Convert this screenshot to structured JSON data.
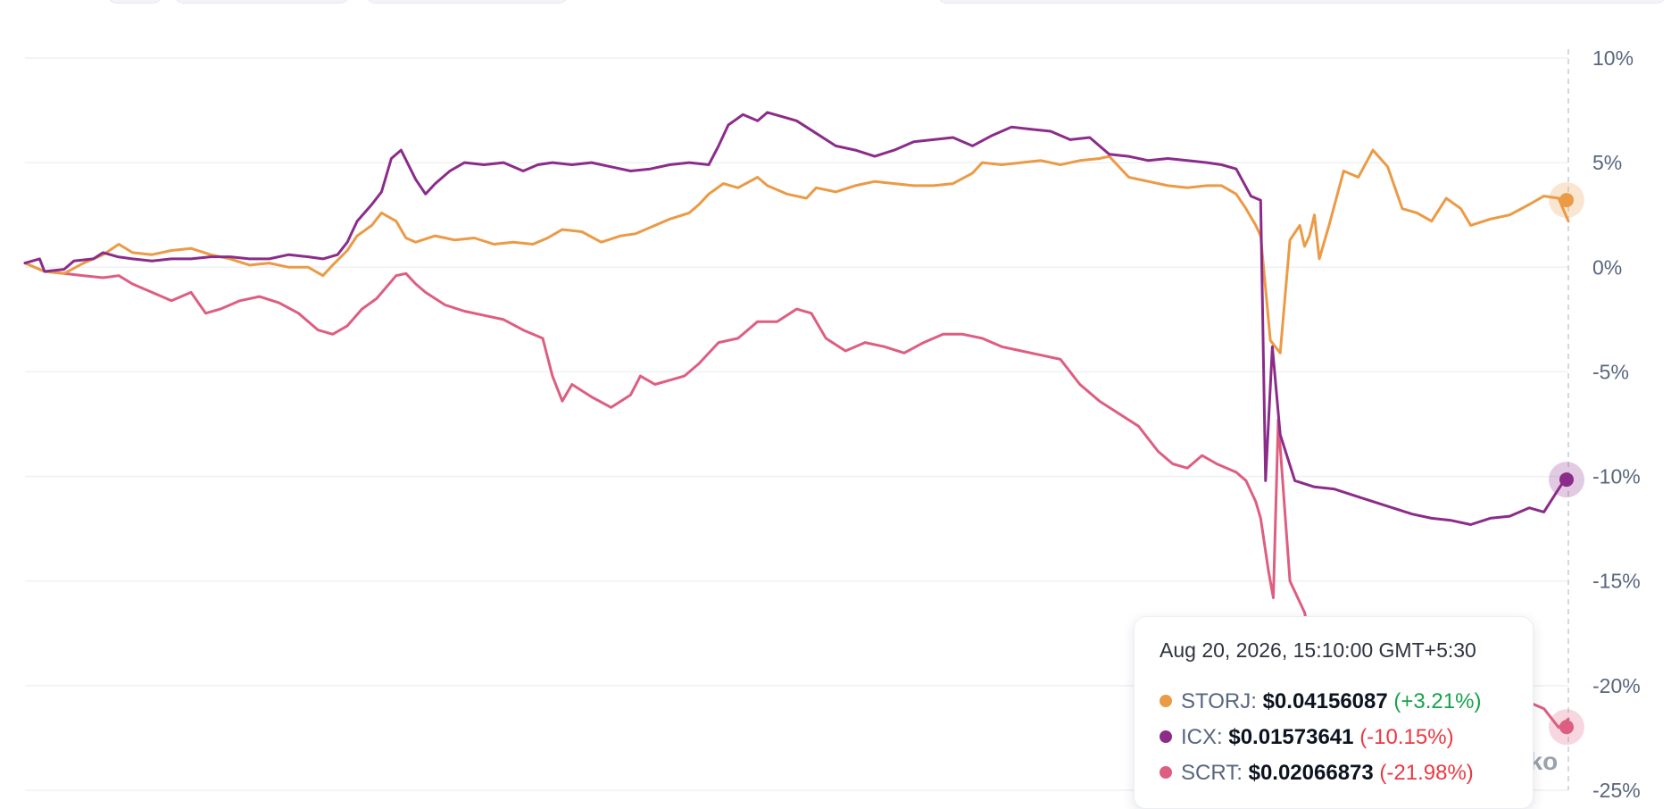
{
  "chart_data": {
    "type": "line",
    "y_axis": {
      "ticks": [
        10,
        5,
        0,
        -5,
        -10,
        -15,
        -20,
        -25
      ],
      "tick_labels": [
        "10%",
        "5%",
        "0%",
        "-5%",
        "-10%",
        "-15%",
        "-20%",
        "-25%"
      ],
      "ylim": [
        -25,
        10
      ],
      "position": "right"
    },
    "grid": true,
    "colors": {
      "STORJ": "#eb9a45",
      "ICX": "#8b2c8a",
      "SCRT": "#dd5e80"
    },
    "series": [
      {
        "name": "STORJ",
        "values": [
          [
            0,
            0.2
          ],
          [
            2,
            -0.2
          ],
          [
            4,
            -0.3
          ],
          [
            6,
            0.2
          ],
          [
            8,
            0.6
          ],
          [
            9.6,
            1.1
          ],
          [
            11,
            0.7
          ],
          [
            13,
            0.6
          ],
          [
            15,
            0.8
          ],
          [
            17,
            0.9
          ],
          [
            19,
            0.6
          ],
          [
            21,
            0.4
          ],
          [
            23,
            0.1
          ],
          [
            25,
            0.2
          ],
          [
            27,
            0.0
          ],
          [
            29,
            0.0
          ],
          [
            30.5,
            -0.4
          ],
          [
            31.5,
            0.1
          ],
          [
            33,
            0.8
          ],
          [
            34,
            1.5
          ],
          [
            35.5,
            2.0
          ],
          [
            36.5,
            2.6
          ],
          [
            38,
            2.2
          ],
          [
            39,
            1.4
          ],
          [
            40,
            1.2
          ],
          [
            42,
            1.5
          ],
          [
            44,
            1.3
          ],
          [
            46,
            1.4
          ],
          [
            48,
            1.1
          ],
          [
            50,
            1.2
          ],
          [
            52,
            1.1
          ],
          [
            53.5,
            1.4
          ],
          [
            55,
            1.8
          ],
          [
            57,
            1.7
          ],
          [
            59,
            1.2
          ],
          [
            61,
            1.5
          ],
          [
            62.5,
            1.6
          ],
          [
            64,
            1.9
          ],
          [
            66,
            2.3
          ],
          [
            68,
            2.6
          ],
          [
            69,
            3.0
          ],
          [
            70,
            3.5
          ],
          [
            71.5,
            4.0
          ],
          [
            73,
            3.8
          ],
          [
            75,
            4.3
          ],
          [
            76,
            3.9
          ],
          [
            78,
            3.5
          ],
          [
            80,
            3.3
          ],
          [
            81,
            3.8
          ],
          [
            83,
            3.6
          ],
          [
            85,
            3.9
          ],
          [
            87,
            4.1
          ],
          [
            89,
            4.0
          ],
          [
            91,
            3.9
          ],
          [
            93,
            3.9
          ],
          [
            95,
            4.0
          ],
          [
            97,
            4.5
          ],
          [
            98,
            5.0
          ],
          [
            100,
            4.9
          ],
          [
            102,
            5.0
          ],
          [
            104,
            5.1
          ],
          [
            106,
            4.9
          ],
          [
            108,
            5.1
          ],
          [
            110,
            5.2
          ],
          [
            111,
            5.3
          ],
          [
            113,
            4.3
          ],
          [
            115,
            4.1
          ],
          [
            117,
            3.9
          ],
          [
            119,
            3.8
          ],
          [
            121,
            3.9
          ],
          [
            122.5,
            3.9
          ],
          [
            124,
            3.5
          ],
          [
            125,
            2.8
          ],
          [
            126,
            2.0
          ],
          [
            126.5,
            1.5
          ],
          [
            127.5,
            -3.5
          ],
          [
            128.5,
            -4.1
          ],
          [
            129.5,
            1.3
          ],
          [
            130.5,
            2.0
          ],
          [
            131,
            1.0
          ],
          [
            131.5,
            1.5
          ],
          [
            132,
            2.5
          ],
          [
            132.5,
            0.4
          ],
          [
            133.5,
            2.0
          ],
          [
            135,
            4.6
          ],
          [
            136.5,
            4.3
          ],
          [
            138,
            5.6
          ],
          [
            139.5,
            4.8
          ],
          [
            141,
            2.8
          ],
          [
            142.5,
            2.6
          ],
          [
            144,
            2.2
          ],
          [
            145.5,
            3.3
          ],
          [
            147,
            2.8
          ],
          [
            148,
            2.0
          ],
          [
            150,
            2.3
          ],
          [
            152,
            2.5
          ],
          [
            154,
            3.0
          ],
          [
            155.5,
            3.4
          ],
          [
            157,
            3.3
          ],
          [
            158,
            2.2
          ]
        ]
      },
      {
        "name": "ICX",
        "values": [
          [
            0,
            0.2
          ],
          [
            1.5,
            0.4
          ],
          [
            2,
            -0.2
          ],
          [
            4,
            -0.1
          ],
          [
            5,
            0.3
          ],
          [
            7,
            0.4
          ],
          [
            8,
            0.7
          ],
          [
            9.5,
            0.5
          ],
          [
            11,
            0.4
          ],
          [
            13,
            0.3
          ],
          [
            15,
            0.4
          ],
          [
            17,
            0.4
          ],
          [
            19,
            0.5
          ],
          [
            21,
            0.5
          ],
          [
            23,
            0.4
          ],
          [
            25,
            0.4
          ],
          [
            27,
            0.6
          ],
          [
            29,
            0.5
          ],
          [
            30.5,
            0.4
          ],
          [
            32,
            0.6
          ],
          [
            33,
            1.2
          ],
          [
            34,
            2.2
          ],
          [
            35.5,
            3.0
          ],
          [
            36.5,
            3.6
          ],
          [
            37.5,
            5.2
          ],
          [
            38.5,
            5.6
          ],
          [
            40,
            4.2
          ],
          [
            41,
            3.5
          ],
          [
            42,
            4.0
          ],
          [
            43.5,
            4.6
          ],
          [
            45,
            5.0
          ],
          [
            47,
            4.9
          ],
          [
            49,
            5.0
          ],
          [
            51,
            4.6
          ],
          [
            52.5,
            4.9
          ],
          [
            54,
            5.0
          ],
          [
            56,
            4.9
          ],
          [
            58,
            5.0
          ],
          [
            60,
            4.8
          ],
          [
            62,
            4.6
          ],
          [
            64,
            4.7
          ],
          [
            66,
            4.9
          ],
          [
            68,
            5.0
          ],
          [
            70,
            4.9
          ],
          [
            71,
            5.8
          ],
          [
            72,
            6.8
          ],
          [
            73.5,
            7.3
          ],
          [
            75,
            7.0
          ],
          [
            76,
            7.4
          ],
          [
            77.5,
            7.2
          ],
          [
            79,
            7.0
          ],
          [
            81,
            6.4
          ],
          [
            83,
            5.8
          ],
          [
            85,
            5.6
          ],
          [
            87,
            5.3
          ],
          [
            89,
            5.6
          ],
          [
            91,
            6.0
          ],
          [
            93,
            6.1
          ],
          [
            95,
            6.2
          ],
          [
            97,
            5.8
          ],
          [
            99,
            6.3
          ],
          [
            101,
            6.7
          ],
          [
            103,
            6.6
          ],
          [
            105,
            6.5
          ],
          [
            107,
            6.1
          ],
          [
            109,
            6.2
          ],
          [
            111,
            5.4
          ],
          [
            113,
            5.3
          ],
          [
            115,
            5.1
          ],
          [
            117,
            5.2
          ],
          [
            119,
            5.1
          ],
          [
            121,
            5.0
          ],
          [
            122.5,
            4.9
          ],
          [
            124,
            4.7
          ],
          [
            125.5,
            3.4
          ],
          [
            126.5,
            3.2
          ],
          [
            127,
            -10.2
          ],
          [
            127.7,
            -3.8
          ],
          [
            128.5,
            -8.0
          ],
          [
            130,
            -10.2
          ],
          [
            132,
            -10.5
          ],
          [
            134,
            -10.6
          ],
          [
            136,
            -10.9
          ],
          [
            138,
            -11.2
          ],
          [
            140,
            -11.5
          ],
          [
            142,
            -11.8
          ],
          [
            144,
            -12.0
          ],
          [
            146,
            -12.1
          ],
          [
            148,
            -12.3
          ],
          [
            150,
            -12.0
          ],
          [
            152,
            -11.9
          ],
          [
            154,
            -11.5
          ],
          [
            155.5,
            -11.7
          ],
          [
            157,
            -10.6
          ],
          [
            158,
            -9.9
          ]
        ]
      },
      {
        "name": "SCRT",
        "values": [
          [
            0,
            0.2
          ],
          [
            2,
            -0.2
          ],
          [
            4,
            -0.3
          ],
          [
            6,
            -0.4
          ],
          [
            8,
            -0.5
          ],
          [
            9.6,
            -0.4
          ],
          [
            11,
            -0.8
          ],
          [
            13,
            -1.2
          ],
          [
            15,
            -1.6
          ],
          [
            17,
            -1.2
          ],
          [
            18.5,
            -2.2
          ],
          [
            20,
            -2.0
          ],
          [
            22,
            -1.6
          ],
          [
            24,
            -1.4
          ],
          [
            26,
            -1.7
          ],
          [
            28,
            -2.2
          ],
          [
            30,
            -3.0
          ],
          [
            31.5,
            -3.2
          ],
          [
            33,
            -2.8
          ],
          [
            34.5,
            -2.0
          ],
          [
            36,
            -1.5
          ],
          [
            38,
            -0.4
          ],
          [
            39,
            -0.3
          ],
          [
            40,
            -0.8
          ],
          [
            41,
            -1.2
          ],
          [
            43,
            -1.8
          ],
          [
            45,
            -2.1
          ],
          [
            47,
            -2.3
          ],
          [
            49,
            -2.5
          ],
          [
            51,
            -3.0
          ],
          [
            53,
            -3.4
          ],
          [
            54,
            -5.2
          ],
          [
            55,
            -6.4
          ],
          [
            56,
            -5.6
          ],
          [
            58,
            -6.2
          ],
          [
            60,
            -6.7
          ],
          [
            62,
            -6.1
          ],
          [
            63,
            -5.2
          ],
          [
            64.5,
            -5.6
          ],
          [
            66,
            -5.4
          ],
          [
            67.5,
            -5.2
          ],
          [
            69,
            -4.6
          ],
          [
            71,
            -3.6
          ],
          [
            73,
            -3.4
          ],
          [
            75,
            -2.6
          ],
          [
            77,
            -2.6
          ],
          [
            79,
            -2.0
          ],
          [
            80.5,
            -2.2
          ],
          [
            82,
            -3.4
          ],
          [
            84,
            -4.0
          ],
          [
            86,
            -3.6
          ],
          [
            88,
            -3.8
          ],
          [
            90,
            -4.1
          ],
          [
            92,
            -3.6
          ],
          [
            94,
            -3.2
          ],
          [
            96,
            -3.2
          ],
          [
            98,
            -3.4
          ],
          [
            100,
            -3.8
          ],
          [
            102,
            -4.0
          ],
          [
            104,
            -4.2
          ],
          [
            106,
            -4.4
          ],
          [
            108,
            -5.6
          ],
          [
            110,
            -6.4
          ],
          [
            112,
            -7.0
          ],
          [
            114,
            -7.6
          ],
          [
            116,
            -8.8
          ],
          [
            117.5,
            -9.4
          ],
          [
            119,
            -9.6
          ],
          [
            120.5,
            -9.0
          ],
          [
            122,
            -9.4
          ],
          [
            124,
            -9.8
          ],
          [
            125,
            -10.2
          ],
          [
            126,
            -11.2
          ],
          [
            126.5,
            -12.0
          ],
          [
            127.3,
            -14.5
          ],
          [
            127.8,
            -15.8
          ],
          [
            128.3,
            -7.3
          ],
          [
            129.5,
            -15.0
          ],
          [
            131,
            -16.5
          ],
          [
            132.5,
            -20.0
          ],
          [
            134,
            -21.0
          ]
        ]
      }
    ],
    "series_tail": {
      "name": "SCRT",
      "values": [
        [
          150,
          -20.9
        ],
        [
          152,
          -20.4
        ],
        [
          154,
          -20.8
        ],
        [
          155.5,
          -21.1
        ],
        [
          157,
          -22.0
        ],
        [
          158,
          -21.6
        ]
      ]
    },
    "series_tail_left": {
      "name": "SCRT",
      "values": [
        [
          135,
          -17.2
        ],
        [
          136,
          -16.9
        ]
      ]
    },
    "endpoints": {
      "STORJ": 3.21,
      "ICX": -10.15,
      "SCRT": -21.98
    },
    "watermark": "cko"
  },
  "tooltip": {
    "date": "Aug 20, 2026, 15:10:00 GMT+5:30",
    "rows": [
      {
        "symbol": "STORJ",
        "price": "$0.04156087",
        "change": "(+3.21%)",
        "direction": "pos",
        "color": "#eb9a45"
      },
      {
        "symbol": "ICX",
        "price": "$0.01573641",
        "change": "(-10.15%)",
        "direction": "neg",
        "color": "#8b2c8a"
      },
      {
        "symbol": "SCRT",
        "price": "$0.02066873",
        "change": "(-21.98%)",
        "direction": "neg",
        "color": "#dd5e80"
      }
    ]
  }
}
